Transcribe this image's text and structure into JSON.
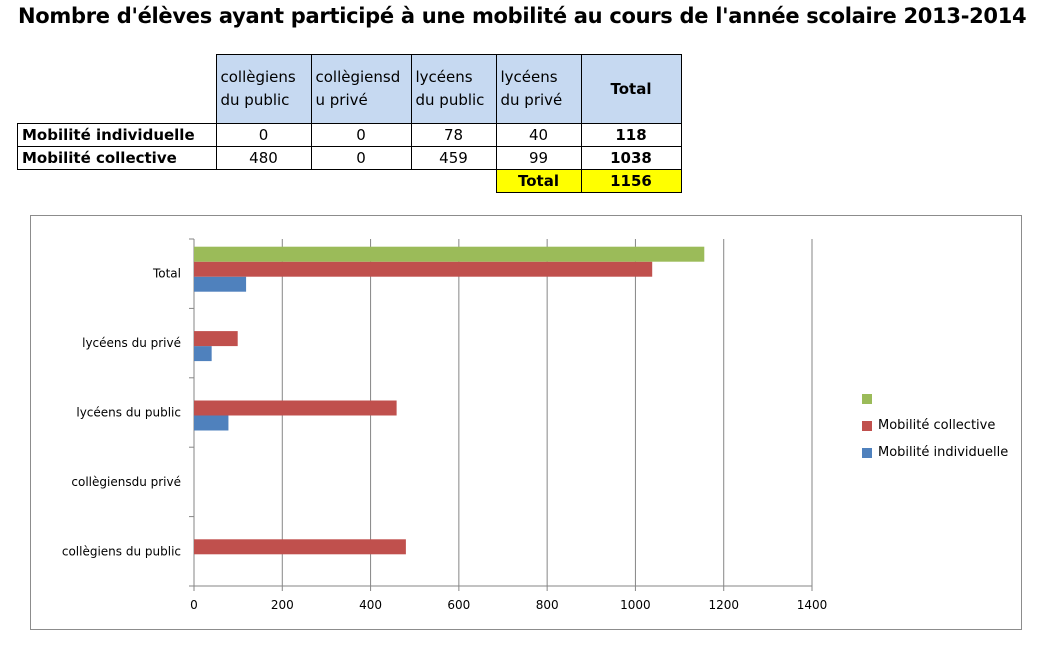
{
  "title": "Nombre d'élèves ayant participé à une mobilité au cours de l'année scolaire 2013-2014",
  "table": {
    "headers": [
      "collègiens du public",
      "collègiensd u privé",
      "lycéens du public",
      "lycéens du privé",
      "Total"
    ],
    "header_lines": [
      [
        "collègiens",
        "du public"
      ],
      [
        "collègiensd",
        "u privé"
      ],
      [
        "lycéens",
        "du public"
      ],
      [
        "lycéens",
        "du privé"
      ]
    ],
    "header_total": "Total",
    "rows": [
      {
        "label": "Mobilité individuelle",
        "values": [
          "0",
          "0",
          "78",
          "40"
        ],
        "total": "118"
      },
      {
        "label": "Mobilité collective",
        "values": [
          "480",
          "0",
          "459",
          "99"
        ],
        "total": "1038"
      }
    ],
    "grand_total_label": "Total",
    "grand_total_value": "1156"
  },
  "chart_data": {
    "type": "bar",
    "orientation": "horizontal",
    "categories": [
      "collègiens du public",
      "collègiensdu privé",
      "lycéens du public",
      "lycéens du privé",
      "Total"
    ],
    "series": [
      {
        "name": "Mobilité individuelle",
        "color": "#4f81bd",
        "values": [
          0,
          0,
          78,
          40,
          118
        ]
      },
      {
        "name": "Mobilité collective",
        "color": "#c0504d",
        "values": [
          480,
          0,
          459,
          99,
          1038
        ]
      },
      {
        "name": "",
        "color": "#9bbb59",
        "values": [
          null,
          null,
          null,
          null,
          1156
        ]
      }
    ],
    "xlim": [
      0,
      1400
    ],
    "xticks": [
      "0",
      "200",
      "400",
      "600",
      "800",
      "1000",
      "1200",
      "1400"
    ],
    "grid": "vertical",
    "legend": "right"
  }
}
